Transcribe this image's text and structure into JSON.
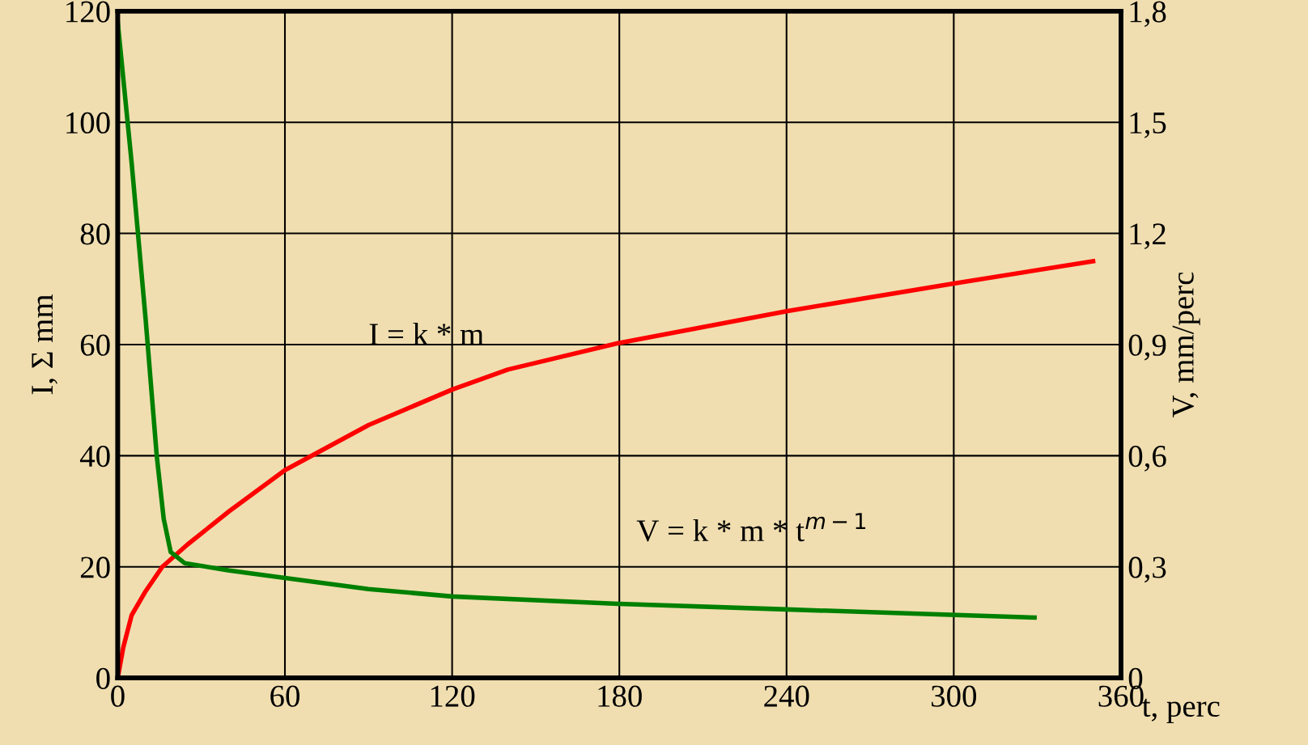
{
  "chart_data": {
    "type": "line",
    "xlabel": "t, perc",
    "ylabel": "I, Σ mm",
    "y2label": "V, mm/perc",
    "xlim": [
      0,
      360
    ],
    "xticks": [
      0,
      60,
      120,
      180,
      240,
      300,
      360
    ],
    "ylim": [
      0,
      120
    ],
    "yticks": [
      0,
      20,
      40,
      60,
      80,
      100,
      120
    ],
    "y2lim": [
      0,
      1.8
    ],
    "y2ticks": [
      {
        "value": 0,
        "label": "0"
      },
      {
        "value": 0.3,
        "label": "0,3"
      },
      {
        "value": 0.6,
        "label": "0,6"
      },
      {
        "value": 0.9,
        "label": "0,9"
      },
      {
        "value": 1.2,
        "label": "1,2"
      },
      {
        "value": 1.5,
        "label": "1,5"
      },
      {
        "value": 1.8,
        "label": "1,8"
      }
    ],
    "grid": true,
    "series": [
      {
        "color": "#ff0000",
        "x": [
          0,
          2,
          5,
          10,
          16,
          25,
          40,
          60,
          90,
          120,
          140,
          180,
          240,
          300,
          350
        ],
        "values": [
          0,
          5.5,
          11.3,
          15.6,
          20,
          24,
          30,
          37.4,
          45.5,
          51.9,
          55.5,
          60.3,
          66,
          71,
          75
        ]
      },
      {
        "color": "#008000",
        "axis": "y2",
        "x": [
          0,
          5,
          10,
          14,
          16.5,
          19,
          24,
          40,
          60,
          90,
          120,
          180,
          240,
          329
        ],
        "values": [
          1.77,
          1.39,
          0.97,
          0.6,
          0.43,
          0.34,
          0.31,
          0.29,
          0.27,
          0.24,
          0.22,
          0.2,
          0.185,
          0.163
        ]
      }
    ],
    "annotations": [
      "I = k * m",
      "V = k * m * t$^{m−1}$"
    ]
  }
}
